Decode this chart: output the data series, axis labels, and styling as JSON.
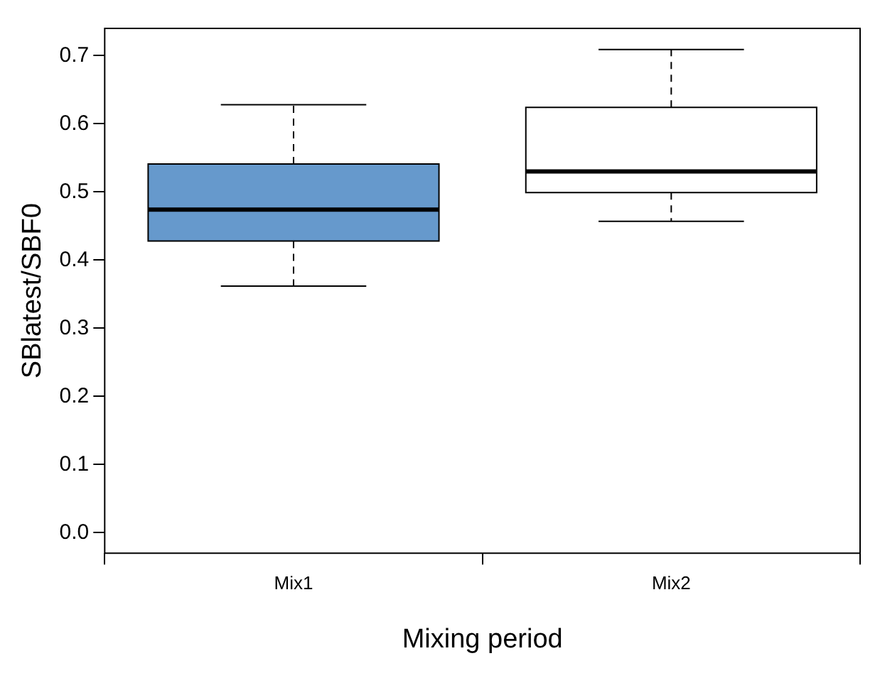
{
  "chart_data": {
    "type": "box",
    "xlabel": "Mixing period",
    "ylabel": "SBlatest/SBF0",
    "categories": [
      "Mix1",
      "Mix2"
    ],
    "colors": [
      "#6699cc",
      "#ffffff"
    ],
    "boxes": [
      {
        "low": 0.362,
        "q1": 0.428,
        "median": 0.474,
        "q3": 0.541,
        "high": 0.628
      },
      {
        "low": 0.457,
        "q1": 0.499,
        "median": 0.53,
        "q3": 0.624,
        "high": 0.709
      }
    ],
    "ylim": [
      -0.03,
      0.74
    ],
    "yticks": [
      {
        "value": 0,
        "label": "0.0"
      },
      0.1,
      0.2,
      0.3,
      0.4,
      0.5,
      0.6,
      0.7
    ],
    "grid": false
  }
}
